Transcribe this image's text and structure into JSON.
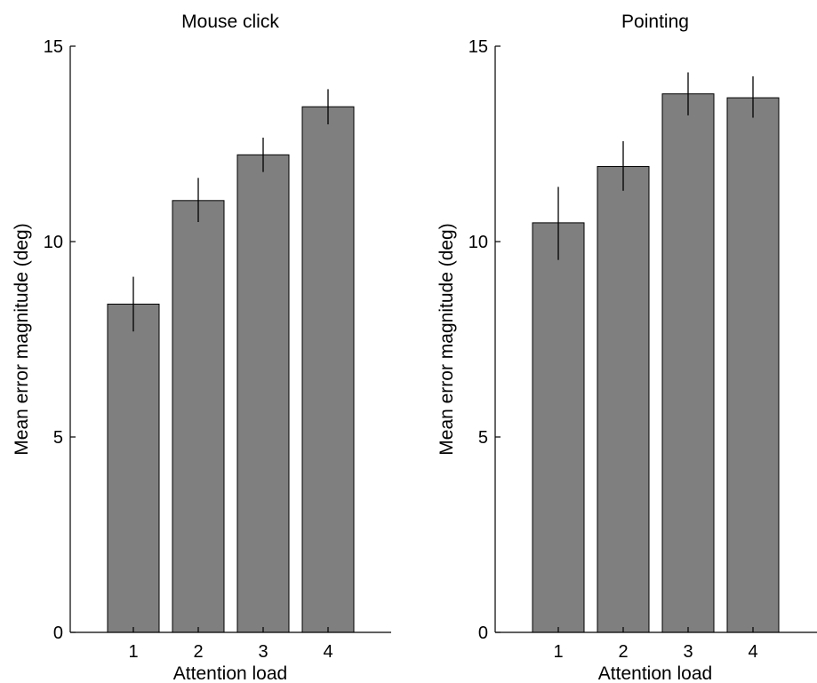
{
  "chart_data": [
    {
      "type": "bar",
      "title": "Mouse click",
      "xlabel": "Attention load",
      "ylabel": "Mean error magnitude (deg)",
      "categories": [
        "1",
        "2",
        "3",
        "4"
      ],
      "values": [
        8.4,
        11.05,
        12.22,
        13.45
      ],
      "error_bars": [
        {
          "low": 7.7,
          "high": 9.1
        },
        {
          "low": 10.5,
          "high": 11.63
        },
        {
          "low": 11.78,
          "high": 12.66
        },
        {
          "low": 13.0,
          "high": 13.9
        }
      ],
      "ylim": [
        0,
        15
      ],
      "yticks": [
        "0",
        "5",
        "10",
        "15"
      ],
      "bar_color": "#7f7f7f",
      "grid": false
    },
    {
      "type": "bar",
      "title": "Pointing",
      "xlabel": "Attention load",
      "ylabel": "Mean error magnitude (deg)",
      "categories": [
        "1",
        "2",
        "3",
        "4"
      ],
      "values": [
        10.48,
        11.92,
        13.78,
        13.68
      ],
      "error_bars": [
        {
          "low": 9.53,
          "high": 11.4
        },
        {
          "low": 11.3,
          "high": 12.57
        },
        {
          "low": 13.23,
          "high": 14.33
        },
        {
          "low": 13.17,
          "high": 14.23
        }
      ],
      "ylim": [
        0,
        15
      ],
      "yticks": [
        "0",
        "5",
        "10",
        "15"
      ],
      "bar_color": "#7f7f7f",
      "grid": false
    }
  ]
}
